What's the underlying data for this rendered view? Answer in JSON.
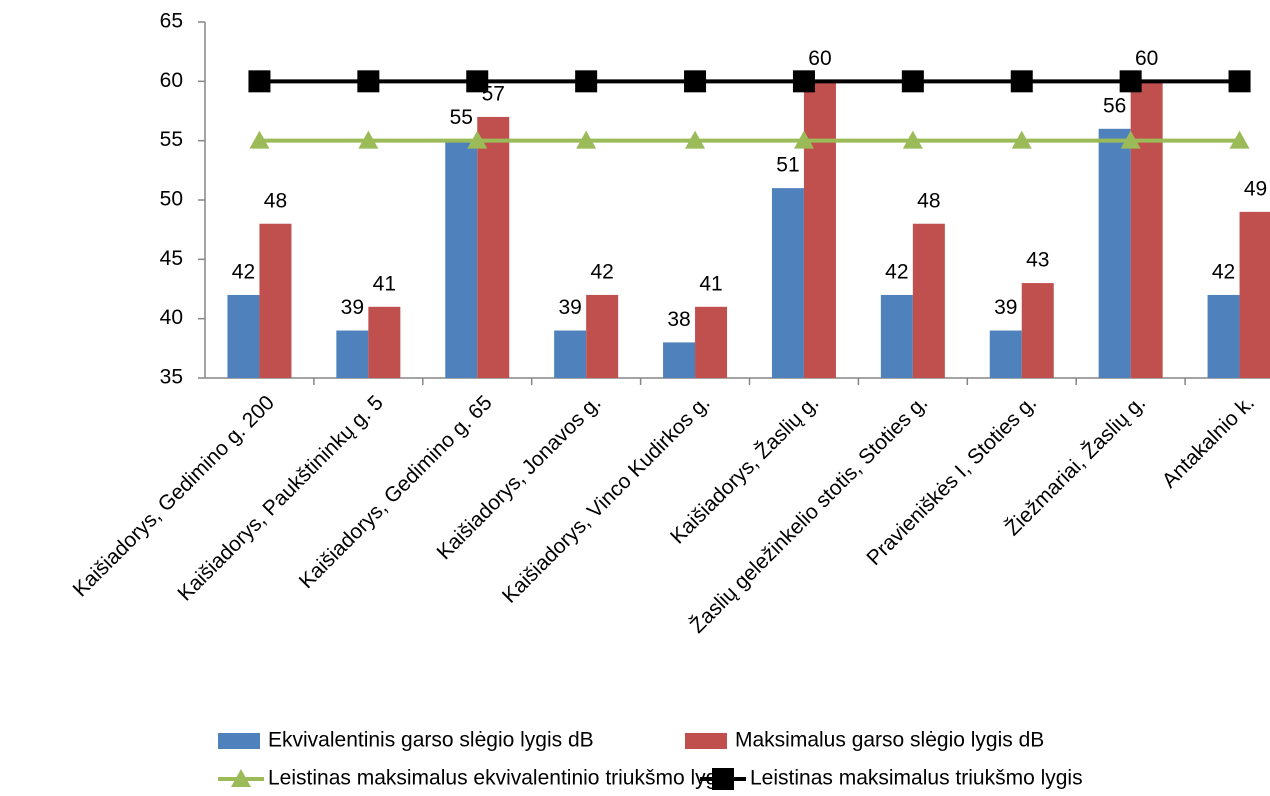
{
  "chart_data": {
    "type": "bar",
    "categories": [
      "Kaišiadorys, Gedimino g. 200",
      "Kaišiadorys, Paukštininkų g. 5",
      "Kaišiadorys, Gedimino g. 65",
      "Kaišiadorys, Jonavos g.",
      "Kaišiadorys, Vinco Kudirkos g.",
      "Kaišiadorys, Žaslių g.",
      "Žaslių geležinkelio stotis, Stoties g.",
      "Pravieniškės I, Stoties g.",
      "Žiežmariai, Žaslių g.",
      "Antakalnio k."
    ],
    "series": [
      {
        "name": "Ekvivalentinis garso slėgio lygis dB",
        "type": "bar",
        "color": "#4f81bd",
        "values": [
          42,
          39,
          55,
          39,
          38,
          51,
          42,
          39,
          56,
          42
        ]
      },
      {
        "name": "Maksimalus garso slėgio lygis dB",
        "type": "bar",
        "color": "#c0504d",
        "values": [
          48,
          41,
          57,
          42,
          41,
          60,
          48,
          43,
          60,
          49
        ]
      },
      {
        "name": "Leistinas maksimalus ekvivalentinio triukšmo lygis",
        "type": "line",
        "marker": "triangle",
        "color": "#9bbb59",
        "values": [
          55,
          55,
          55,
          55,
          55,
          55,
          55,
          55,
          55,
          55
        ]
      },
      {
        "name": "Leistinas maksimalus triukšmo lygis",
        "type": "line",
        "marker": "square",
        "color": "#000000",
        "values": [
          60,
          60,
          60,
          60,
          60,
          60,
          60,
          60,
          60,
          60
        ]
      }
    ],
    "ylim": [
      35,
      65
    ],
    "yticks": [
      35,
      40,
      45,
      50,
      55,
      60,
      65
    ],
    "grid": false,
    "data_labels": true
  }
}
